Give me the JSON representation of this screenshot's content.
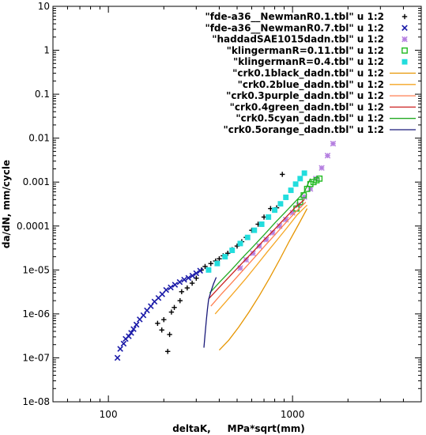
{
  "chart_data": {
    "type": "scatter",
    "xlabel": "deltaK,     MPa*sqrt(mm)",
    "ylabel": "da/dN, mm/cycle",
    "xscale": "log",
    "yscale": "log",
    "xlim": [
      50,
      5000
    ],
    "ylim": [
      1e-08,
      10
    ],
    "legend_position": "top-right",
    "x_ticks": [
      {
        "value": 100,
        "label": "100"
      },
      {
        "value": 1000,
        "label": "1000"
      }
    ],
    "y_ticks": [
      {
        "value": 10,
        "label": "10"
      },
      {
        "value": 1,
        "label": "1"
      },
      {
        "value": 0.1,
        "label": "0.1"
      },
      {
        "value": 0.01,
        "label": "0.01"
      },
      {
        "value": 0.001,
        "label": "0.001"
      },
      {
        "value": 0.0001,
        "label": "0.0001"
      },
      {
        "value": 1e-05,
        "label": "1e-05"
      },
      {
        "value": 1e-06,
        "label": "1e-06"
      },
      {
        "value": 1e-07,
        "label": "1e-07"
      },
      {
        "value": 1e-08,
        "label": "1e-08"
      }
    ],
    "series": [
      {
        "name": "\"fde-a36__NewmanR0.1.tbl\" u 1:2",
        "marker": "plus",
        "color": "#000000",
        "x": [
          210,
          215,
          195,
          185,
          200,
          220,
          228,
          245,
          250,
          268,
          285,
          300,
          320,
          335,
          360,
          382,
          400,
          420,
          445,
          470,
          500,
          530,
          560,
          600,
          650,
          700,
          760,
          820,
          880
        ],
        "y": [
          1.4e-07,
          3.4e-07,
          4.3e-07,
          6.1e-07,
          7.4e-07,
          1.1e-06,
          1.4e-06,
          2e-06,
          3.2e-06,
          3.9e-06,
          5e-06,
          6.5e-06,
          1e-05,
          1.2e-05,
          1.4e-05,
          1.6e-05,
          1.8e-05,
          2.1e-05,
          2.4e-05,
          2.9e-05,
          3.5e-05,
          4.4e-05,
          5.5e-05,
          8e-05,
          0.00011,
          0.00016,
          0.00025,
          0.00026,
          0.0015
        ]
      },
      {
        "name": "\"fde-a36__NewmanR0.7.tbl\" u 1:2",
        "marker": "x",
        "color": "#1a1aa8",
        "x": [
          112,
          116,
          121,
          124,
          129,
          133,
          137,
          142,
          148,
          155,
          162,
          170,
          178,
          187,
          196,
          206,
          218,
          230,
          244,
          258,
          272,
          286,
          300,
          315
        ],
        "y": [
          1e-07,
          1.6e-07,
          2.1e-07,
          2.7e-07,
          3.1e-07,
          3.7e-07,
          4.5e-07,
          5.7e-07,
          7.5e-07,
          9.3e-07,
          1.2e-06,
          1.5e-06,
          1.9e-06,
          2.3e-06,
          2.8e-06,
          3.5e-06,
          4e-06,
          4.6e-06,
          5.3e-06,
          6e-06,
          6.6e-06,
          7.4e-06,
          8.4e-06,
          9.6e-06
        ]
      },
      {
        "name": "\"haddadSAE1015dadn.tbl\" u 1:2",
        "marker": "star",
        "color": "#b57fe0",
        "x": [
          520,
          560,
          610,
          660,
          720,
          780,
          850,
          920,
          1000,
          1080,
          1160,
          1250,
          1340,
          1440,
          1550,
          1660
        ],
        "y": [
          1.1e-05,
          1.7e-05,
          2.4e-05,
          3.5e-05,
          4.9e-05,
          7e-05,
          0.0001,
          0.00014,
          0.0002,
          0.0003,
          0.00046,
          0.0007,
          0.0012,
          0.0021,
          0.004,
          0.0075
        ]
      },
      {
        "name": "\"klingermanR=0.11.tbl\" u 1:2",
        "marker": "square-open",
        "color": "#22bb22",
        "x": [
          1050,
          1100,
          1150,
          1200,
          1250,
          1300,
          1350,
          1400
        ],
        "y": [
          0.00025,
          0.00035,
          0.0005,
          0.0007,
          0.0009,
          0.001,
          0.0011,
          0.0012
        ]
      },
      {
        "name": "\"klingermanR=0.4.tbl\" u 1:2",
        "marker": "square-filled",
        "color": "#22dddd",
        "x": [
          350,
          390,
          430,
          470,
          520,
          570,
          620,
          680,
          740,
          800,
          860,
          920,
          980,
          1040,
          1100,
          1160
        ],
        "y": [
          1e-05,
          1.4e-05,
          2e-05,
          2.8e-05,
          4e-05,
          5.5e-05,
          8e-05,
          0.00011,
          0.00016,
          0.00023,
          0.00032,
          0.00045,
          0.00065,
          0.0009,
          0.0012,
          0.0016
        ]
      },
      {
        "name": "\"crk0.1black_dadn.tbl\" u 1:2",
        "marker": "line",
        "color": "#e69500",
        "x": [
          400,
          450,
          510,
          580,
          660,
          750,
          850,
          960,
          1080,
          1200
        ],
        "y": [
          1.5e-07,
          2.5e-07,
          5e-07,
          1.1e-06,
          2.6e-06,
          6.5e-06,
          1.7e-05,
          4.5e-05,
          0.00011,
          0.00025
        ]
      },
      {
        "name": "\"crk0.2blue_dadn.tbl\" u 1:2",
        "marker": "line",
        "color": "#f5a623",
        "x": [
          380,
          430,
          490,
          560,
          640,
          730,
          830,
          940,
          1060,
          1200
        ],
        "y": [
          1e-06,
          1.8e-06,
          3.4e-06,
          6.5e-06,
          1.3e-05,
          2.6e-05,
          5e-05,
          9.5e-05,
          0.00018,
          0.0003
        ]
      },
      {
        "name": "\"crk0.3purple_dadn.tbl\" u 1:2",
        "marker": "line",
        "color": "#ff7f50",
        "x": [
          360,
          410,
          470,
          540,
          620,
          710,
          810,
          920,
          1040,
          1180
        ],
        "y": [
          1.5e-06,
          2.8e-06,
          5.2e-06,
          1e-05,
          1.9e-05,
          3.6e-05,
          6.6e-05,
          0.00012,
          0.00021,
          0.00035
        ]
      },
      {
        "name": "\"crk0.4green_dadn.tbl\" u 1:2",
        "marker": "line",
        "color": "#cc2222",
        "x": [
          350,
          400,
          460,
          530,
          610,
          700,
          800,
          910,
          1030,
          1160
        ],
        "y": [
          2.2e-06,
          4e-06,
          7.5e-06,
          1.4e-05,
          2.6e-05,
          4.8e-05,
          8.5e-05,
          0.00015,
          0.00026,
          0.0004
        ]
      },
      {
        "name": "\"crk0.5cyan_dadn.tbl\" u 1:2",
        "marker": "line",
        "color": "#22aa22",
        "x": [
          355,
          405,
          465,
          535,
          615,
          705,
          805,
          915,
          1035,
          1160,
          1250
        ],
        "y": [
          3e-06,
          5.5e-06,
          1e-05,
          1.9e-05,
          3.5e-05,
          6.5e-05,
          0.00012,
          0.00021,
          0.00036,
          0.0006,
          0.0012
        ]
      },
      {
        "name": "\"crk0.5orange_dadn.tbl\" u 1:2",
        "marker": "line",
        "color": "#1a1a7a",
        "x": [
          330,
          335,
          340,
          345,
          350,
          360,
          372,
          385
        ],
        "y": [
          1.7e-07,
          3.5e-07,
          7e-07,
          1.3e-06,
          2.1e-06,
          3.2e-06,
          4.8e-06,
          6.8e-06
        ]
      }
    ]
  }
}
